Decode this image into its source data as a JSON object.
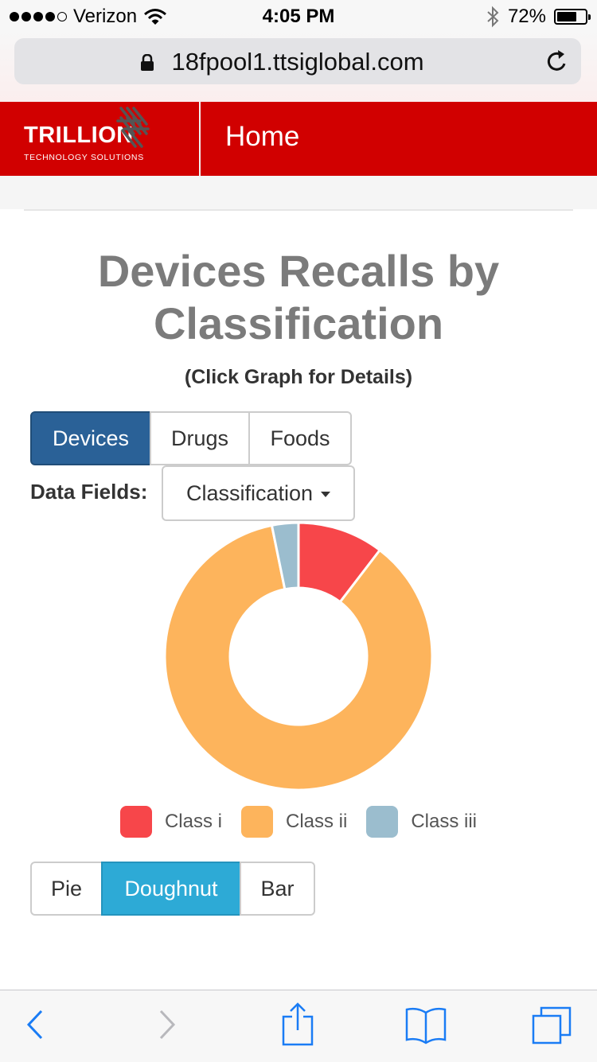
{
  "status_bar": {
    "carrier": "Verizon",
    "signal_bars": 4,
    "signal_max": 5,
    "time": "4:05 PM",
    "battery_percent": "72%",
    "battery_level": 0.72
  },
  "browser": {
    "url": "18fpool1.ttsiglobal.com"
  },
  "navbar": {
    "brand_name": "TRILLION",
    "brand_tagline": "TECHNOLOGY SOLUTIONS",
    "home_link": "Home"
  },
  "page": {
    "title": "Devices Recalls by Classification",
    "subtitle": "(Click Graph for Details)"
  },
  "dataset_tabs": {
    "items": [
      {
        "label": "Devices",
        "active": true
      },
      {
        "label": "Drugs",
        "active": false
      },
      {
        "label": "Foods",
        "active": false
      }
    ]
  },
  "data_fields": {
    "label": "Data Fields:",
    "selected": "Classification"
  },
  "chart_type_tabs": {
    "items": [
      {
        "label": "Pie",
        "active": false
      },
      {
        "label": "Doughnut",
        "active": true
      },
      {
        "label": "Bar",
        "active": false
      }
    ]
  },
  "chart_data": {
    "type": "doughnut",
    "title": "",
    "categories": [
      "Class i",
      "Class ii",
      "Class iii"
    ],
    "values": [
      10.4,
      86.4,
      3.2
    ],
    "colors": [
      "#f7464a",
      "#fdb45c",
      "#9bbdce"
    ],
    "legend_position": "bottom"
  },
  "colors": {
    "navbar": "#d10000",
    "active_dataset_button": "#2a6197",
    "active_chart_button": "#2daad6",
    "title_text": "#7b7b7b"
  }
}
